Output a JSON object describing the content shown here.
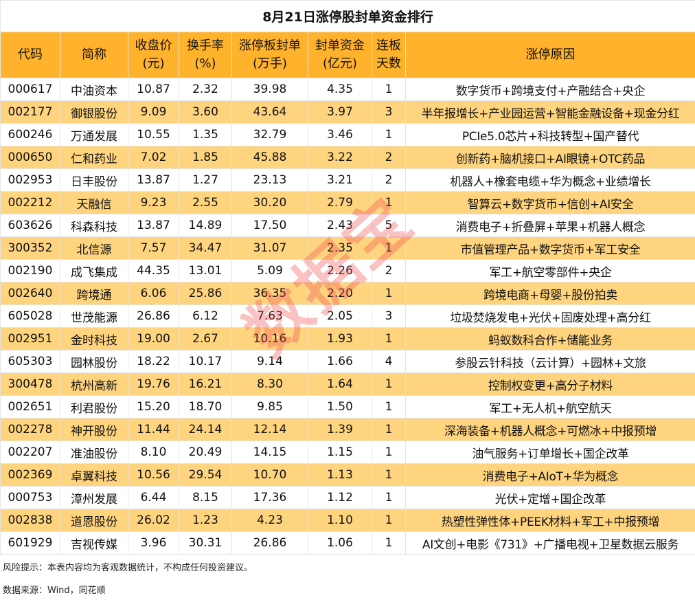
{
  "title": "8月21日涨停股封单资金排行",
  "headers": [
    "代码",
    "简称",
    "收盘价\n(元)",
    "换手率\n(%)",
    "涨停板封单\n(万手)",
    "封单资金\n(亿元)",
    "连板\n天数",
    "涨停原因"
  ],
  "rows": [
    [
      "000617",
      "中油资本",
      "10.87",
      "2.32",
      "39.98",
      "4.35",
      "1",
      "数字货币+跨境支付+产融结合+央企"
    ],
    [
      "002177",
      "御银股份",
      "9.09",
      "3.60",
      "43.64",
      "3.97",
      "3",
      "半年报增长+产业园运营+智能金融设备+现金分红"
    ],
    [
      "600246",
      "万通发展",
      "10.55",
      "1.35",
      "32.79",
      "3.46",
      "1",
      "PCIe5.0芯片+科技转型+国产替代"
    ],
    [
      "000650",
      "仁和药业",
      "7.02",
      "1.85",
      "45.88",
      "3.22",
      "2",
      "创新药+脑机接口+AI眼镜+OTC药品"
    ],
    [
      "002953",
      "日丰股份",
      "13.87",
      "1.27",
      "23.13",
      "3.21",
      "2",
      "机器人+橡套电缆+华为概念+业绩增长"
    ],
    [
      "002212",
      "天融信",
      "9.23",
      "2.55",
      "30.20",
      "2.79",
      "1",
      "智算云+数字货币+信创+AI安全"
    ],
    [
      "603626",
      "科森科技",
      "13.87",
      "14.89",
      "17.50",
      "2.43",
      "5",
      "消费电子+折叠屏+苹果+机器人概念"
    ],
    [
      "300352",
      "北信源",
      "7.57",
      "34.47",
      "31.07",
      "2.35",
      "1",
      "市值管理产品+数字货币+军工安全"
    ],
    [
      "002190",
      "成飞集成",
      "44.35",
      "13.01",
      "5.09",
      "2.26",
      "2",
      "军工+航空零部件+央企"
    ],
    [
      "002640",
      "跨境通",
      "6.06",
      "25.86",
      "36.35",
      "2.20",
      "1",
      "跨境电商+母婴+股份拍卖"
    ],
    [
      "605028",
      "世茂能源",
      "26.86",
      "6.12",
      "7.63",
      "2.05",
      "3",
      "垃圾焚烧发电+光伏+固废处理+高分红"
    ],
    [
      "002951",
      "金时科技",
      "19.00",
      "2.67",
      "10.16",
      "1.93",
      "1",
      "蚂蚁数科合作+储能业务"
    ],
    [
      "605303",
      "园林股份",
      "18.22",
      "10.17",
      "9.14",
      "1.66",
      "4",
      "参股云针科技（云计算）+园林+文旅"
    ],
    [
      "300478",
      "杭州高新",
      "19.76",
      "16.21",
      "8.30",
      "1.64",
      "1",
      "控制权变更+高分子材料"
    ],
    [
      "002651",
      "利君股份",
      "15.20",
      "18.70",
      "9.85",
      "1.50",
      "1",
      "军工+无人机+航空航天"
    ],
    [
      "002278",
      "神开股份",
      "11.44",
      "24.14",
      "12.14",
      "1.39",
      "1",
      "深海装备+机器人概念+可燃冰+中报预增"
    ],
    [
      "002207",
      "准油股份",
      "8.10",
      "20.49",
      "14.15",
      "1.15",
      "1",
      "油气服务+订单增长+国企改革"
    ],
    [
      "002369",
      "卓翼科技",
      "10.56",
      "29.54",
      "10.70",
      "1.13",
      "1",
      "消费电子+AIoT+华为概念"
    ],
    [
      "000753",
      "漳州发展",
      "6.44",
      "8.15",
      "17.36",
      "1.12",
      "1",
      "光伏+定增+国企改革"
    ],
    [
      "002838",
      "道恩股份",
      "26.02",
      "1.23",
      "4.23",
      "1.10",
      "1",
      "热塑性弹性体+PEEK材料+军工+中报预增"
    ],
    [
      "601929",
      "吉视传媒",
      "3.96",
      "30.31",
      "26.86",
      "1.06",
      "1",
      "AI文创+电影《731》+广播电视+卫星数据云服务"
    ]
  ],
  "footer": {
    "risk": "风险提示：本表内容均为客观数据统计，不构成任何投资建议。",
    "source": "数据来源：Wind，同花顺"
  },
  "watermark": "数据宝",
  "colors": {
    "header": "#FFB22B",
    "alt_row": "#FFD47F",
    "watermark": "#F05050"
  }
}
